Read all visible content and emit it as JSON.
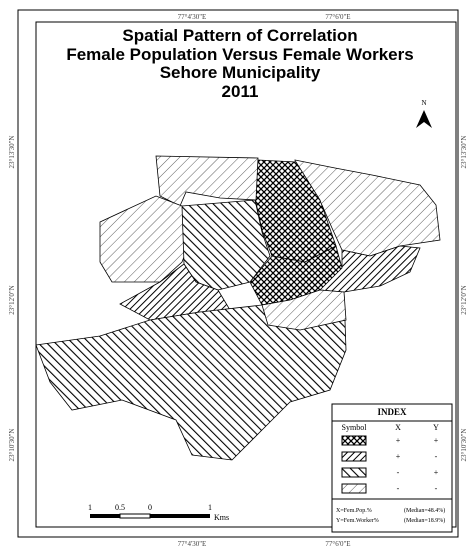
{
  "title": {
    "lines": [
      "Spatial Pattern of Correlation",
      "Female Population Versus Female Workers",
      "Sehore Municipality",
      "2011"
    ]
  },
  "graticule": {
    "top": [
      "77°4'30\"E",
      "77°6'0\"E"
    ],
    "bottom": [
      "77°4'30\"E",
      "77°6'0\"E"
    ],
    "left": [
      "23°13'30\"N",
      "23°12'0\"N",
      "23°10'30\"N"
    ],
    "right": [
      "23°13'30\"N",
      "23°12'0\"N",
      "23°10'30\"N"
    ]
  },
  "north": "N",
  "legend": {
    "title": "INDEX",
    "headers": [
      "Symbol",
      "X",
      "Y"
    ],
    "rows": [
      [
        "+",
        "+"
      ],
      [
        "+",
        "-"
      ],
      [
        "-",
        "+"
      ],
      [
        "-",
        "-"
      ]
    ],
    "notes": [
      [
        "X=Fem.Pop.%",
        "(Median=48.4%)"
      ],
      [
        "Y=Fem.Worker%",
        "(Median=18.9%)"
      ]
    ]
  },
  "scale": {
    "labels": [
      "1",
      "0.5",
      "0",
      "1"
    ],
    "unit": "Kms"
  }
}
